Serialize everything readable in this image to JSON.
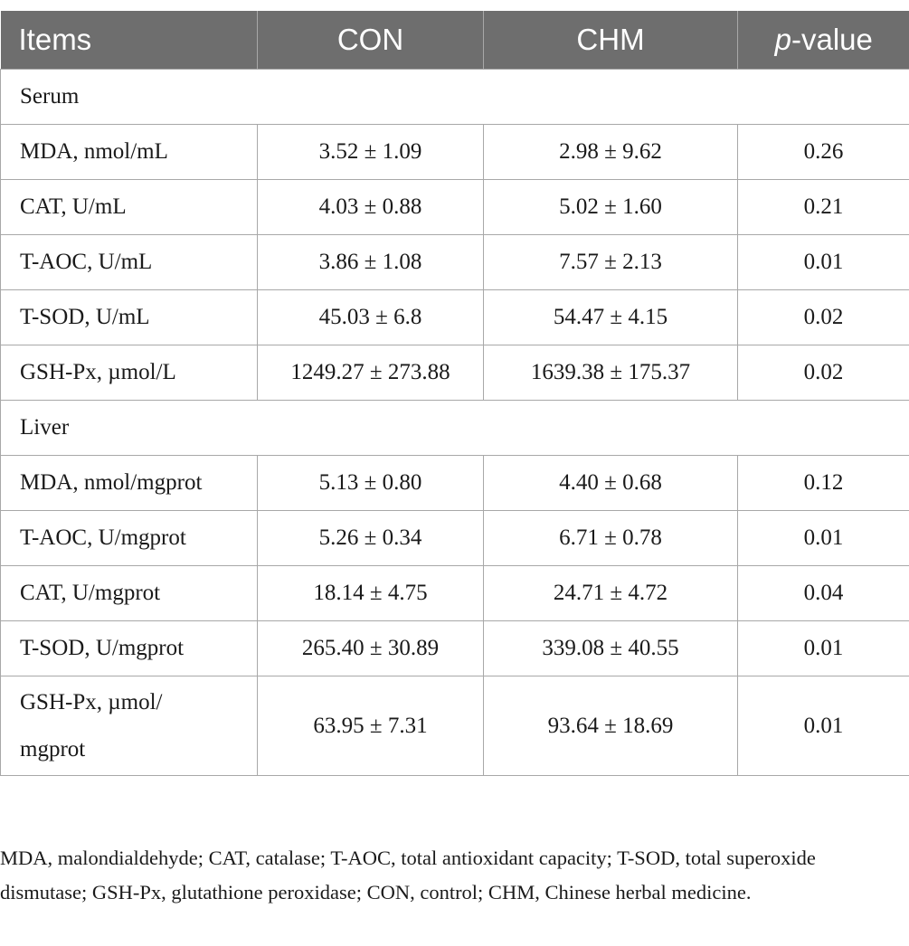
{
  "table": {
    "headers": {
      "items": "Items",
      "con": "CON",
      "chm": "CHM",
      "p_italic": "p",
      "p_rest": "-value"
    },
    "sections": [
      {
        "label": "Serum",
        "rows": [
          {
            "item": "MDA, nmol/mL",
            "con": "3.52 ± 1.09",
            "chm": "2.98 ± 9.62",
            "p": "0.26"
          },
          {
            "item": "CAT, U/mL",
            "con": "4.03 ± 0.88",
            "chm": "5.02 ± 1.60",
            "p": "0.21"
          },
          {
            "item": "T-AOC, U/mL",
            "con": "3.86 ± 1.08",
            "chm": "7.57 ± 2.13",
            "p": "0.01"
          },
          {
            "item": "T-SOD, U/mL",
            "con": "45.03 ± 6.8",
            "chm": "54.47 ± 4.15",
            "p": "0.02"
          },
          {
            "item": "GSH-Px, µmol/L",
            "con": "1249.27 ± 273.88",
            "chm": "1639.38 ± 175.37",
            "p": "0.02"
          }
        ]
      },
      {
        "label": "Liver",
        "rows": [
          {
            "item": "MDA, nmol/mgprot",
            "con": "5.13 ± 0.80",
            "chm": "4.40 ± 0.68",
            "p": "0.12"
          },
          {
            "item": "T-AOC, U/mgprot",
            "con": "5.26 ± 0.34",
            "chm": "6.71 ± 0.78",
            "p": "0.01"
          },
          {
            "item": "CAT, U/mgprot",
            "con": "18.14 ± 4.75",
            "chm": "24.71 ± 4.72",
            "p": "0.04"
          },
          {
            "item": "T-SOD, U/mgprot",
            "con": "265.40 ± 30.89",
            "chm": "339.08 ± 40.55",
            "p": "0.01"
          },
          {
            "item": "GSH-Px, µmol/",
            "item_line2": "mgprot",
            "con": "63.95 ± 7.31",
            "chm": "93.64 ± 18.69",
            "p": "0.01"
          }
        ]
      }
    ]
  },
  "footnote": "MDA, malondialdehyde; CAT, catalase; T-AOC, total antioxidant capacity; T-SOD, total superoxide dismutase; GSH-Px, glutathione peroxidase; CON, control; CHM, Chinese herbal medicine."
}
